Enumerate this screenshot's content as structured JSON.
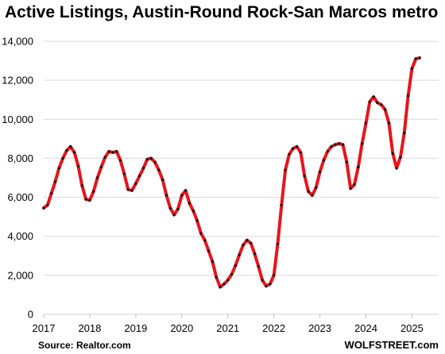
{
  "chart_data": {
    "type": "line",
    "title": "Active Listings, Austin-Round Rock-San Marcos metro",
    "source": "Source: Realtor.com",
    "brand": "WOLFSTREET.com",
    "xlabel": "",
    "ylabel": "",
    "ylim": [
      0,
      14000
    ],
    "xlim": [
      2017,
      2025.58
    ],
    "y_ticks": [
      0,
      2000,
      4000,
      6000,
      8000,
      10000,
      12000,
      14000
    ],
    "y_tick_labels": [
      "0",
      "2,000",
      "4,000",
      "6,000",
      "8,000",
      "10,000",
      "12,000",
      "14,000"
    ],
    "x_ticks": [
      2017,
      2018,
      2019,
      2020,
      2021,
      2022,
      2023,
      2024,
      2025
    ],
    "x_tick_labels": [
      "2017",
      "2018",
      "2019",
      "2020",
      "2021",
      "2022",
      "2023",
      "2024",
      "2025"
    ],
    "grid": "horizontal",
    "line_color": "#e8141b",
    "marker_color": "#111111",
    "series": [
      {
        "name": "",
        "start": "2017-01",
        "frequency": "monthly",
        "values": [
          5450,
          5600,
          6200,
          6800,
          7500,
          8000,
          8400,
          8600,
          8300,
          7600,
          6600,
          5900,
          5850,
          6300,
          7000,
          7550,
          8050,
          8350,
          8300,
          8350,
          7900,
          7200,
          6400,
          6350,
          6700,
          7100,
          7500,
          7950,
          8000,
          7800,
          7400,
          6900,
          6100,
          5450,
          5100,
          5400,
          6100,
          6350,
          5700,
          5300,
          4800,
          4150,
          3800,
          3250,
          2700,
          1900,
          1400,
          1550,
          1750,
          2050,
          2500,
          3050,
          3550,
          3800,
          3650,
          3100,
          2450,
          1750,
          1450,
          1550,
          2000,
          3600,
          5600,
          7400,
          8200,
          8500,
          8600,
          8300,
          7100,
          6300,
          6100,
          6500,
          7300,
          7900,
          8350,
          8600,
          8700,
          8750,
          8700,
          7800,
          6450,
          6650,
          7550,
          8750,
          9800,
          10900,
          11150,
          10850,
          10750,
          10500,
          9800,
          8250,
          7500,
          8050,
          9300,
          11200,
          12600,
          13100,
          13150
        ]
      }
    ]
  }
}
